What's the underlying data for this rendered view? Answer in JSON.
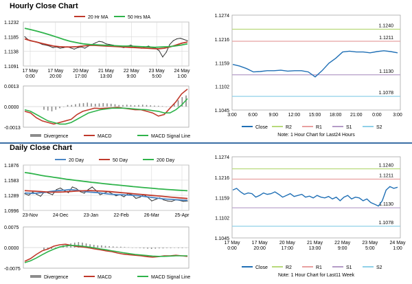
{
  "page": {
    "hourly_title": "Hourly Close Chart",
    "daily_title": "Daily Close Chart"
  },
  "colors": {
    "ma20": "#4a86c5",
    "ma50": "#c0392b",
    "ma200": "#2eb34a",
    "price": "#333333",
    "divergence": "#8c8c8c",
    "macd": "#c0392b",
    "signal": "#2eb34a",
    "close": "#1f6fb5",
    "R2": "#b7d97a",
    "R1": "#e8a0a0",
    "S1": "#b49bc7",
    "S2": "#8fd0e8"
  },
  "chart_data": [
    {
      "id": "hourly_price",
      "type": "line",
      "legend": [
        "20 Hr MA",
        "50 Hrs MA"
      ],
      "y_ticks": [
        "1.1232",
        "1.1185",
        "1.1138",
        "1.1091"
      ],
      "ylim": [
        1.1091,
        1.1232
      ],
      "x_labels": [
        "17 May\n0:00",
        "17 May\n20:00",
        "20 May\n17:00",
        "21 May\n13:00",
        "22 May\n9:00",
        "23 May\n5:00",
        "24 May\n1:00"
      ],
      "grid": true,
      "series": [
        {
          "name": "Price",
          "color": "price",
          "values": [
            1.1185,
            1.1175,
            1.1172,
            1.1168,
            1.1165,
            1.116,
            1.1158,
            1.1155,
            1.115,
            1.1152,
            1.1148,
            1.115,
            1.1153,
            1.1149,
            1.1145,
            1.115,
            1.1152,
            1.1148,
            1.1155,
            1.116,
            1.1165,
            1.117,
            1.1168,
            1.1162,
            1.116,
            1.1158,
            1.1155,
            1.1152,
            1.115,
            1.1155,
            1.1158,
            1.1153,
            1.115,
            1.1148,
            1.1152,
            1.1155,
            1.115,
            1.1148,
            1.114,
            1.112,
            1.1135,
            1.116,
            1.1172,
            1.1178,
            1.118,
            1.1176,
            1.1172
          ]
        },
        {
          "name": "20 Hr MA",
          "color": "ma50",
          "values": [
            1.1178,
            1.1172,
            1.1168,
            1.1163,
            1.1159,
            1.1155,
            1.1153,
            1.1152,
            1.1152,
            1.1153,
            1.1155,
            1.1157,
            1.1157,
            1.1156,
            1.1155,
            1.1154,
            1.1153,
            1.1152,
            1.1151,
            1.115,
            1.1149,
            1.1148,
            1.1147,
            1.1146,
            1.1148,
            1.1152,
            1.1158,
            1.1164,
            1.1168
          ]
        },
        {
          "name": "50 Hrs MA",
          "color": "ma200",
          "values": [
            1.1212,
            1.1207,
            1.1202,
            1.1196,
            1.119,
            1.1183,
            1.1176,
            1.117,
            1.1166,
            1.1162,
            1.116,
            1.1159,
            1.1158,
            1.1157,
            1.1156,
            1.1155,
            1.1155,
            1.1154,
            1.1153,
            1.1152,
            1.1151,
            1.1152,
            1.1153,
            1.1155,
            1.1158,
            1.1162
          ]
        }
      ]
    },
    {
      "id": "hourly_macd",
      "type": "line",
      "y_ticks": [
        "0.0013",
        "0.0000",
        "-0.0013"
      ],
      "ylim": [
        -0.0013,
        0.0013
      ],
      "legend": [
        "Divergence",
        "MACD",
        "MACD Signal Line"
      ],
      "series": [
        {
          "name": "Divergence",
          "color": "divergence",
          "type": "bar",
          "values": [
            -0.0002,
            -0.00025,
            -0.0003,
            -0.0002,
            -0.0001,
            0,
            0.0001,
            0.0001,
            0.00015,
            0.0002,
            0.00022,
            0.00025,
            0.0002,
            0.00018,
            0.0002,
            0.00022,
            0.0002,
            0.00018,
            0.00015,
            0.0001,
            0.0001,
            0.00012,
            0.0001,
            8e-05,
            0.0001,
            0.00012,
            0.0001,
            8e-05,
            6e-05,
            5e-05,
            3e-05,
            0,
            -2e-05,
            0.0002,
            0.0004,
            0.0006,
            0.0007
          ]
        },
        {
          "name": "MACD",
          "color": "macd",
          "values": [
            -0.0003,
            -0.0004,
            -0.0007,
            -0.0009,
            -0.001,
            -0.0011,
            -0.001,
            -0.0009,
            -0.0008,
            -0.0005,
            -0.0003,
            -0.0002,
            -0.0001,
            -0.00012,
            -0.0001,
            -8e-05,
            -5e-05,
            -0.0001,
            -0.00015,
            -0.0002,
            -0.0002,
            -0.0003,
            -0.0004,
            -0.0006,
            -0.0005,
            -0.0001,
            0.0003,
            0.0008,
            0.0011
          ]
        },
        {
          "name": "MACD Signal Line",
          "color": "signal",
          "values": [
            -0.0002,
            -0.0003,
            -0.0005,
            -0.0007,
            -0.0009,
            -0.001,
            -0.0011,
            -0.0011,
            -0.001,
            -0.0008,
            -0.0006,
            -0.0004,
            -0.0003,
            -0.0002,
            -0.00015,
            -0.0001,
            -0.0001,
            -0.0001,
            -0.00012,
            -0.00015,
            -0.00018,
            -0.0002,
            -0.00025,
            -0.0003,
            -0.0004,
            -0.0004,
            -0.0002,
            0.0001,
            0.0005
          ]
        }
      ]
    },
    {
      "id": "hourly_pivot",
      "type": "line",
      "y_ticks": [
        "1.1274",
        "1.1216",
        "1.1159",
        "1.1102",
        "1.1045"
      ],
      "ylim": [
        1.1045,
        1.1274
      ],
      "x_labels": [
        "3:00",
        "6:00",
        "9:00",
        "12:00",
        "15:00",
        "18:00",
        "21:00",
        "0:00",
        "3:00"
      ],
      "levels": [
        {
          "name": "R2",
          "value": 1.124,
          "label": "1.1240",
          "color": "R2"
        },
        {
          "name": "R1",
          "value": 1.1211,
          "label": "1.1211",
          "color": "R1"
        },
        {
          "name": "S1",
          "value": 1.113,
          "label": "1.1130",
          "color": "S1"
        },
        {
          "name": "S2",
          "value": 1.1078,
          "label": "1.1078",
          "color": "S2"
        }
      ],
      "legend": [
        "Close",
        "R2",
        "R1",
        "S1",
        "S2"
      ],
      "note": "Note: 1 Hour Chart for Last24 Hours",
      "series": [
        {
          "name": "Close",
          "color": "close",
          "values": [
            1.1155,
            1.1151,
            1.1145,
            1.1137,
            1.1138,
            1.114,
            1.114,
            1.1141,
            1.1139,
            1.114,
            1.114,
            1.1137,
            1.1125,
            1.114,
            1.1158,
            1.117,
            1.1185,
            1.1187,
            1.1185,
            1.1185,
            1.1183,
            1.1186,
            1.1188,
            1.1186,
            1.1183
          ]
        }
      ]
    },
    {
      "id": "daily_price",
      "type": "line",
      "legend": [
        "20 Day",
        "50 Day",
        "200 Day"
      ],
      "y_ticks": [
        "1.1876",
        "1.1583",
        "1.1289",
        "1.0996"
      ],
      "ylim": [
        1.0996,
        1.1876
      ],
      "x_labels": [
        "23-Nov",
        "24-Dec",
        "23-Jan",
        "22-Feb",
        "26-Mar",
        "25-Apr"
      ],
      "grid": true,
      "series": [
        {
          "name": "Price",
          "color": "price",
          "values": [
            1.132,
            1.129,
            1.135,
            1.131,
            1.127,
            1.136,
            1.133,
            1.13,
            1.14,
            1.143,
            1.138,
            1.134,
            1.145,
            1.142,
            1.136,
            1.133,
            1.14,
            1.145,
            1.138,
            1.13,
            1.133,
            1.136,
            1.132,
            1.128,
            1.13,
            1.126,
            1.132,
            1.13,
            1.123,
            1.125,
            1.13,
            1.125,
            1.118,
            1.121,
            1.124,
            1.12,
            1.118,
            1.117,
            1.12,
            1.119,
            1.117,
            1.118
          ]
        },
        {
          "name": "20 Day",
          "color": "ma20",
          "values": [
            1.1335,
            1.133,
            1.1325,
            1.133,
            1.134,
            1.1345,
            1.136,
            1.137,
            1.138,
            1.1385,
            1.139,
            1.14,
            1.1395,
            1.1385,
            1.1375,
            1.136,
            1.135,
            1.1345,
            1.134,
            1.133,
            1.132,
            1.131,
            1.1305,
            1.13,
            1.13,
            1.1295,
            1.129,
            1.1285,
            1.128,
            1.127,
            1.126,
            1.125,
            1.124,
            1.123,
            1.122,
            1.1215,
            1.121,
            1.1205,
            1.12,
            1.1195,
            1.119
          ]
        },
        {
          "name": "50 Day",
          "color": "ma50",
          "values": [
            1.138,
            1.1375,
            1.137,
            1.1365,
            1.136,
            1.1355,
            1.135,
            1.135,
            1.1352,
            1.1355,
            1.136,
            1.1365,
            1.137,
            1.1375,
            1.1378,
            1.138,
            1.1378,
            1.1375,
            1.137,
            1.1365,
            1.136,
            1.1352,
            1.1345,
            1.1338,
            1.133,
            1.1322,
            1.1315,
            1.1308,
            1.13,
            1.1292,
            1.1285,
            1.1278,
            1.127,
            1.1262,
            1.1255,
            1.1248,
            1.124,
            1.1233,
            1.1226
          ]
        },
        {
          "name": "200 Day",
          "color": "ma200",
          "values": [
            1.173,
            1.172,
            1.1705,
            1.169,
            1.1675,
            1.1662,
            1.165,
            1.1638,
            1.1626,
            1.1614,
            1.1602,
            1.1592,
            1.1582,
            1.1572,
            1.1562,
            1.1552,
            1.1542,
            1.1533,
            1.1524,
            1.1515,
            1.1506,
            1.1498,
            1.149,
            1.1482,
            1.1474,
            1.1466,
            1.1458,
            1.145,
            1.1443,
            1.1436,
            1.1429,
            1.1422,
            1.1415,
            1.1409,
            1.1403,
            1.1397,
            1.1392,
            1.1387,
            1.1382,
            1.1378
          ]
        }
      ]
    },
    {
      "id": "daily_macd",
      "type": "line",
      "y_ticks": [
        "0.0075",
        "0.0000",
        "-0.0075"
      ],
      "ylim": [
        -0.0075,
        0.0075
      ],
      "legend": [
        "Divergence",
        "MACD",
        "MACD Signal Line"
      ],
      "series": [
        {
          "name": "Divergence",
          "color": "divergence",
          "type": "bar",
          "values": [
            -0.001,
            -0.0008,
            -0.0005,
            -0.0002,
            0.0003,
            0.0008,
            0.0012,
            0.0015,
            0.0018,
            0.002,
            0.0018,
            0.0015,
            0.0012,
            0.001,
            0.0008,
            0.0008,
            0.0006,
            0.0005,
            0.0004,
            0.0003,
            0.0003,
            0.0002,
            0.0001,
            0,
            -0.0001,
            -0.0002,
            -0.0003,
            -0.0004,
            -0.0005,
            -0.0004,
            -0.0003,
            -0.0003,
            -0.0002,
            -0.0002,
            -0.0001,
            -0.0002,
            -0.0002,
            -0.0001
          ]
        },
        {
          "name": "MACD",
          "color": "macd",
          "values": [
            -0.005,
            -0.004,
            -0.0025,
            -0.0012,
            -0.0005,
            0.0005,
            0.001,
            0.0012,
            0.0008,
            0.0004,
            0.0002,
            -0.0001,
            -0.0005,
            -0.0008,
            -0.0012,
            -0.0015,
            -0.002,
            -0.0024,
            -0.0026,
            -0.0028,
            -0.003,
            -0.0033,
            -0.0035,
            -0.0033,
            -0.003,
            -0.003,
            -0.0028,
            -0.003,
            -0.0032
          ]
        },
        {
          "name": "MACD Signal Line",
          "color": "signal",
          "values": [
            -0.0055,
            -0.0048,
            -0.0038,
            -0.0026,
            -0.0015,
            -0.0006,
            0.0002,
            0.0006,
            0.0008,
            0.0007,
            0.0005,
            0.0002,
            -0.0001,
            -0.0005,
            -0.0008,
            -0.0012,
            -0.0015,
            -0.0019,
            -0.0022,
            -0.0025,
            -0.0027,
            -0.0029,
            -0.0031,
            -0.0032,
            -0.0032,
            -0.0031,
            -0.003,
            -0.003,
            -0.003
          ]
        }
      ]
    },
    {
      "id": "daily_pivot",
      "type": "line",
      "y_ticks": [
        "1.1274",
        "1.1216",
        "1.1159",
        "1.1102",
        "1.1045"
      ],
      "ylim": [
        1.1045,
        1.1274
      ],
      "x_labels": [
        "17 May\n0:00",
        "17 May\n20:00",
        "20 May\n17:00",
        "21 May\n13:00",
        "22 May\n9:00",
        "23 May\n5:00",
        "24 May\n1:00"
      ],
      "levels": [
        {
          "name": "R2",
          "value": 1.124,
          "label": "1.1240",
          "color": "R2"
        },
        {
          "name": "R1",
          "value": 1.1211,
          "label": "1.1211",
          "color": "R1"
        },
        {
          "name": "S1",
          "value": 1.113,
          "label": "1.1130",
          "color": "S1"
        },
        {
          "name": "S2",
          "value": 1.1078,
          "label": "1.1078",
          "color": "S2"
        }
      ],
      "legend": [
        "Close",
        "R2",
        "R1",
        "S1",
        "S2"
      ],
      "note": "Note: 1 Hour Chart for Last11 Week",
      "series": [
        {
          "name": "Close",
          "color": "close",
          "values": [
            1.118,
            1.1185,
            1.1175,
            1.1168,
            1.1172,
            1.117,
            1.116,
            1.1165,
            1.1172,
            1.1168,
            1.117,
            1.1175,
            1.1168,
            1.116,
            1.1165,
            1.117,
            1.1162,
            1.1165,
            1.1168,
            1.116,
            1.1163,
            1.1158,
            1.1165,
            1.116,
            1.1158,
            1.1162,
            1.1155,
            1.116,
            1.115,
            1.116,
            1.1165,
            1.1155,
            1.116,
            1.1158,
            1.115,
            1.1155,
            1.1145,
            1.114,
            1.1135,
            1.115,
            1.118,
            1.119,
            1.1185,
            1.1188
          ]
        }
      ]
    }
  ]
}
